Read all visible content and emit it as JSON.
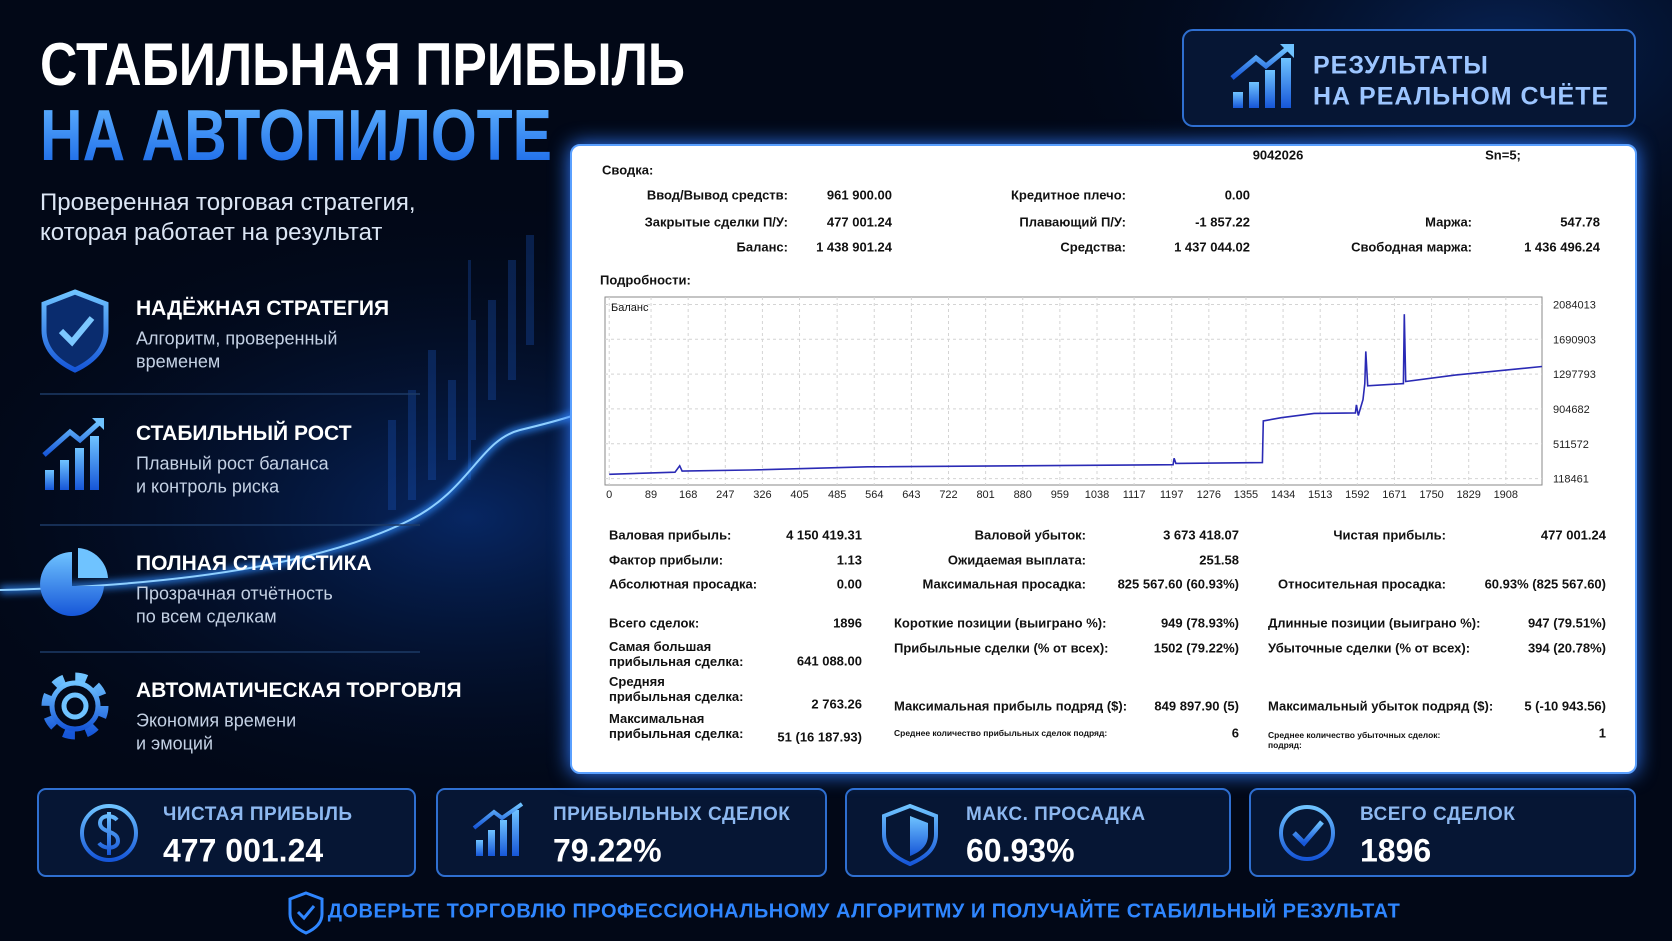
{
  "header": {
    "title": "СТАБИЛЬНАЯ ПРИБЫЛЬ",
    "title_accent": "НА АВТОПИЛОТЕ",
    "subtitle": [
      "Проверенная торговая стратегия,",
      "которая работает на результат"
    ]
  },
  "badge": [
    "РЕЗУЛЬТАТЫ",
    "НА РЕАЛЬНОМ СЧЁТЕ"
  ],
  "features": [
    {
      "title": "НАДЁЖНАЯ СТРАТЕГИЯ",
      "text": [
        "Алгоритм, проверенный",
        "временем"
      ]
    },
    {
      "title": "СТАБИЛЬНЫЙ РОСТ",
      "text": [
        "Плавный рост баланса",
        "и контроль риска"
      ]
    },
    {
      "title": "ПОЛНАЯ СТАТИСТИКА",
      "text": [
        "Прозрачная отчётность",
        "по всем сделкам"
      ]
    },
    {
      "title": "АВТОМАТИЧЕСКАЯ ТОРГОВЛЯ",
      "text": [
        "Экономия времени",
        "и эмоций"
      ]
    }
  ],
  "report": {
    "account": "9042026",
    "sn": "Sn=5;",
    "summary_title": "Сводка:",
    "summary": [
      [
        {
          "label": "Ввод/Вывод средств:",
          "value": "961 900.00"
        },
        {
          "label": "Кредитное плечо:",
          "value": "0.00"
        }
      ],
      [
        {
          "label": "Закрытые сделки П/У:",
          "value": "477 001.24"
        },
        {
          "label": "Плавающий П/У:",
          "value": "-1 857.22"
        },
        {
          "label": "Маржа:",
          "value": "547.78"
        }
      ],
      [
        {
          "label": "Баланс:",
          "value": "1 438 901.24"
        },
        {
          "label": "Средства:",
          "value": "1 437 044.02"
        },
        {
          "label": "Свободная маржа:",
          "value": "1 436 496.24"
        }
      ]
    ],
    "details_title": "Подробности:",
    "chart": {
      "type": "line",
      "legend": "Баланс",
      "color": "#2a2ab5",
      "x": [
        0,
        140,
        150,
        155,
        300,
        550,
        1200,
        1202,
        1206,
        1390,
        1392,
        1430,
        1500,
        1588,
        1590,
        1594,
        1604,
        1608,
        1610,
        1614,
        1690,
        1692,
        1695,
        1800,
        1985
      ],
      "values": [
        166700,
        190000,
        263000,
        203000,
        215000,
        251000,
        275000,
        348000,
        290000,
        299000,
        770000,
        806000,
        854000,
        860000,
        950000,
        830000,
        1010000,
        1190000,
        1554000,
        1166000,
        1190000,
        1974000,
        1214000,
        1287000,
        1383000
      ],
      "xlim": [
        -9,
        1985
      ],
      "ylim": [
        46000,
        2168000
      ],
      "xticks": [
        0,
        89,
        168,
        247,
        326,
        405,
        485,
        564,
        643,
        722,
        801,
        880,
        959,
        1038,
        1117,
        1197,
        1276,
        1355,
        1434,
        1513,
        1592,
        1671,
        1750,
        1829,
        1908
      ],
      "yticks": [
        118461,
        511572,
        904682,
        1297793,
        1690903,
        2084013
      ],
      "grid": true
    },
    "stats": [
      [
        {
          "label": "Валовая прибыль:",
          "value": "4 150 419.31"
        },
        {
          "label": "Валовой убыток:",
          "value": "3 673 418.07"
        },
        {
          "label": "Чистая прибыль:",
          "value": "477 001.24"
        }
      ],
      [
        {
          "label": "Фактор прибыли:",
          "value": "1.13"
        },
        {
          "label": "Ожидаемая выплата:",
          "value": "251.58"
        }
      ],
      [
        {
          "label": "Абсолютная просадка:",
          "value": "0.00"
        },
        {
          "label": "Максимальная просадка:",
          "value": "825 567.60 (60.93%)"
        },
        {
          "label": "Относительная просадка:",
          "value": "60.93% (825 567.60)"
        }
      ]
    ],
    "stats_more": [
      [
        {
          "label": "Всего сделок:",
          "value": "1896"
        },
        {
          "label": "Короткие позиции (выиграно %):",
          "value": "949 (78.93%)"
        },
        {
          "label": "Длинные позиции (выиграно %):",
          "value": "947 (79.51%)"
        }
      ],
      [
        {
          "label": "Самая большая\nприбыльная сделка:",
          "value": "641 088.00"
        },
        {
          "label": "Прибыльные сделки (% от всех):",
          "value": "1502 (79.22%)"
        },
        {
          "label": "Убыточные сделки (% от всех):",
          "value": "394 (20.78%)"
        }
      ],
      [
        {
          "label": "Средняя\nприбыльная сделка:",
          "value": "2 763.26"
        },
        {
          "label": "Максимальная прибыль подряд ($):",
          "value": "849 897.90 (5)"
        },
        {
          "label": "Максимальный убыток подряд ($):",
          "value": "5 (-10 943.56)"
        }
      ],
      [
        {
          "label": "Максимальная\nприбыльная сделка:",
          "value": "51 (16 187.93)"
        },
        {
          "label": "Среднее количество прибыльных сделок подряд:",
          "value": "6"
        },
        {
          "label": "Среднее количество убыточных сделок:\nподряд:",
          "value": "1"
        }
      ]
    ]
  },
  "kpis": [
    {
      "label": "ЧИСТАЯ ПРИБЫЛЬ",
      "value": "477 001.24"
    },
    {
      "label": "ПРИБЫЛЬНЫХ СДЕЛОК",
      "value": "79.22%"
    },
    {
      "label": "МАКС. ПРОСАДКА",
      "value": "60.93%"
    },
    {
      "label": "ВСЕГО СДЕЛОК",
      "value": "1896"
    }
  ],
  "footer": "ДОВЕРЬТЕ ТОРГОВЛЮ ПРОФЕССИОНАЛЬНОМУ АЛГОРИТМУ И ПОЛУЧАЙТЕ СТАБИЛЬНЫЙ РЕЗУЛЬТАТ"
}
